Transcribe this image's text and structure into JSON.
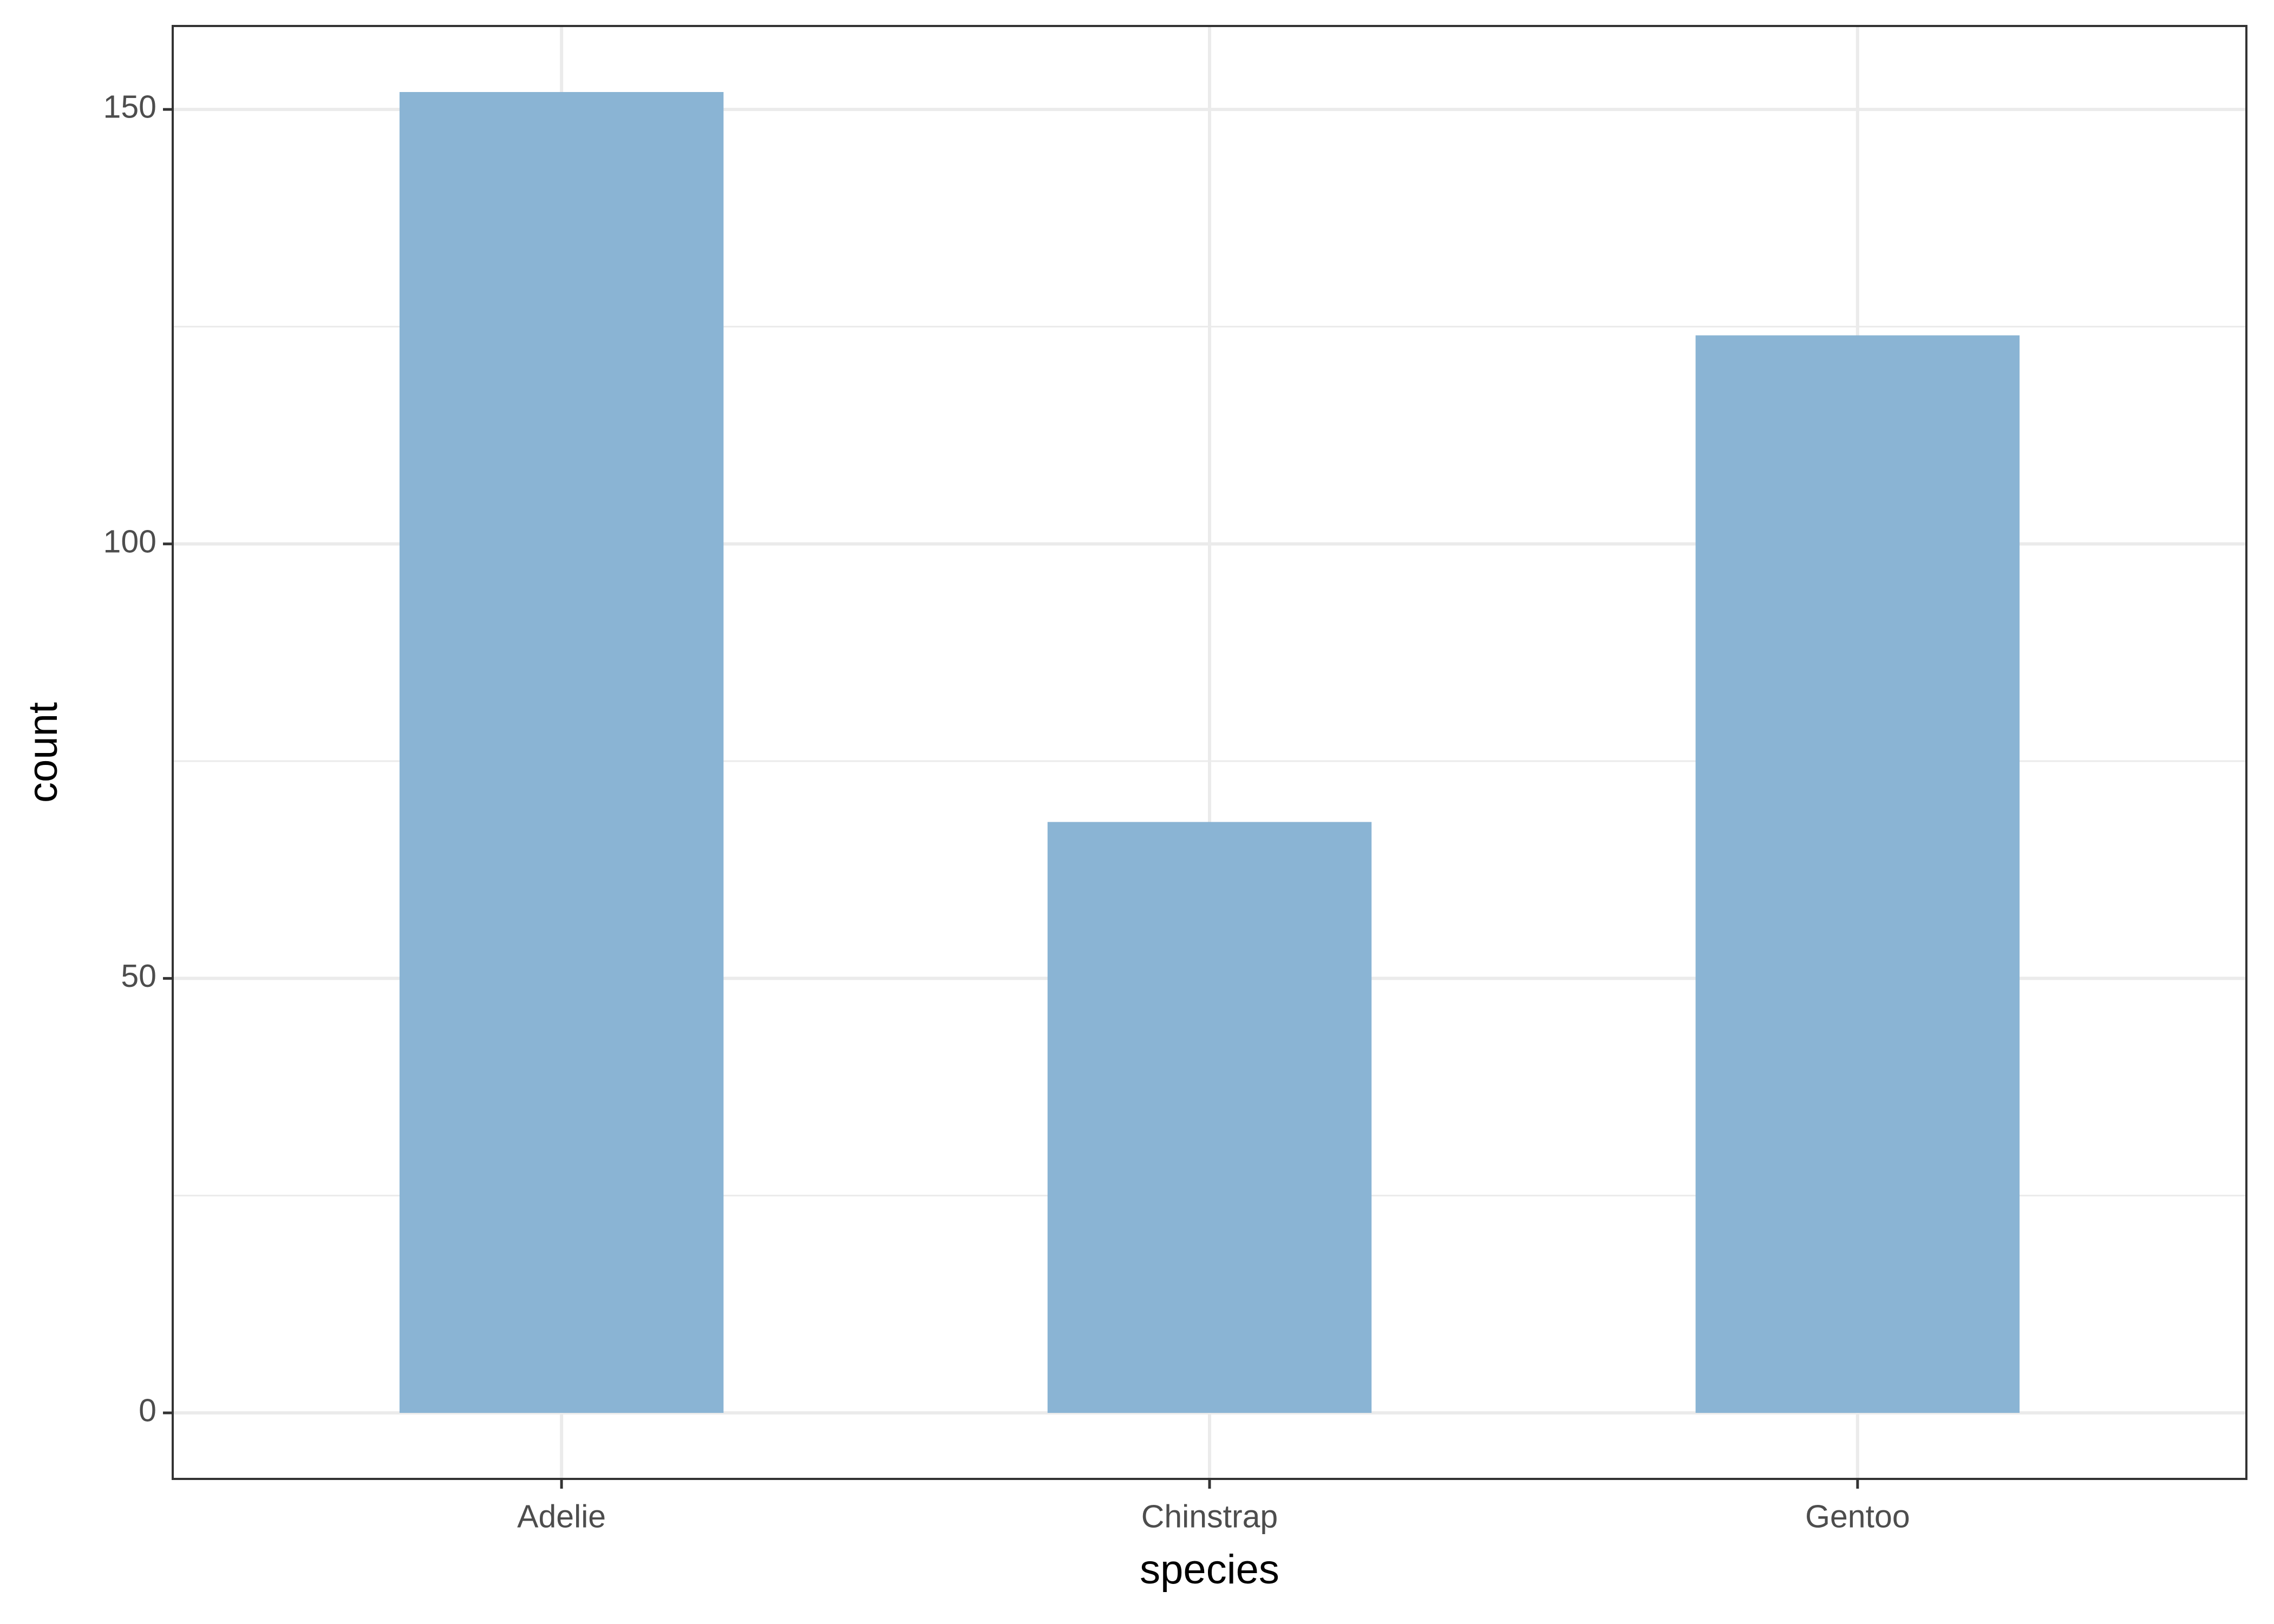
{
  "chart_data": {
    "type": "bar",
    "x_label": "species",
    "y_label": "count",
    "categories": [
      "Adelie",
      "Chinstrap",
      "Gentoo"
    ],
    "values": [
      152,
      68,
      124
    ],
    "color": "#8ab4d4",
    "ylim": [
      -7.6,
      159.6
    ],
    "yticks": [
      0,
      50,
      100,
      150
    ],
    "y_minor_grid": [
      25,
      75,
      125
    ],
    "grid": true
  }
}
